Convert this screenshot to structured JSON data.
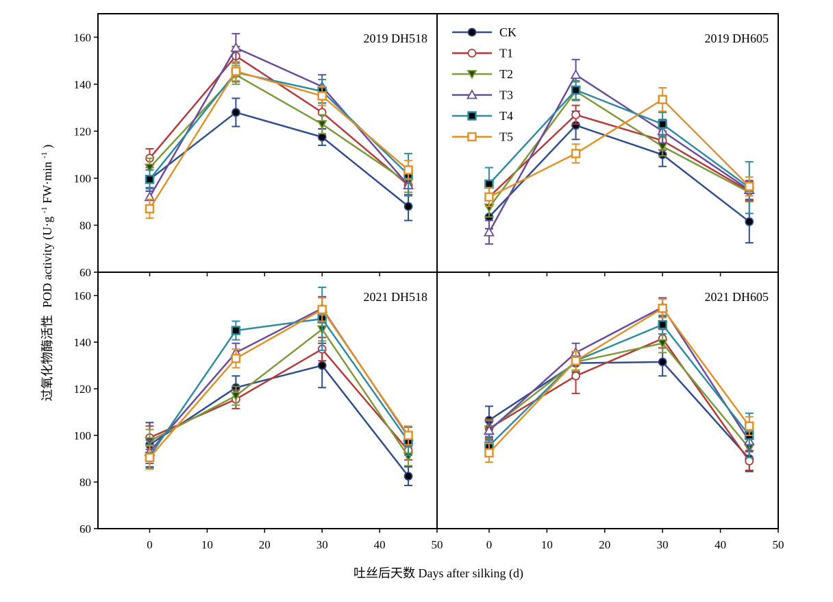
{
  "figure": {
    "ylabel_cn": "过氧化物酶活性",
    "ylabel_en": "POD activity (U·g",
    "ylabel_sup1": "-1",
    "ylabel_mid": " FW·min",
    "ylabel_sup2": "-1",
    "ylabel_end": ")",
    "xlabel": "吐丝后天数 Days after silking (d)"
  },
  "legend": [
    {
      "name": "CK",
      "color": "#2e4d8f",
      "marker": "circle",
      "fill": "#000000"
    },
    {
      "name": "T1",
      "color": "#b23a3a",
      "marker": "circle",
      "fill": "#ffffff"
    },
    {
      "name": "T2",
      "color": "#7c9a3a",
      "marker": "triangle-down",
      "fill": "#2a4a10"
    },
    {
      "name": "T3",
      "color": "#6a4b9a",
      "marker": "triangle-up",
      "fill": "#ffffff"
    },
    {
      "name": "T4",
      "color": "#2e8aa0",
      "marker": "square",
      "fill": "#000000"
    },
    {
      "name": "T5",
      "color": "#e0912a",
      "marker": "square",
      "fill": "#ffffff"
    }
  ],
  "chart_data": [
    {
      "type": "line",
      "title": "2019 DH518",
      "x": [
        0,
        15,
        30,
        45
      ],
      "xlim": [
        -9,
        50
      ],
      "ylim": [
        60,
        170
      ],
      "xticks": [
        0,
        10,
        20,
        30,
        40,
        50
      ],
      "yticks": [
        60,
        80,
        100,
        120,
        140,
        160
      ],
      "series": [
        {
          "name": "CK",
          "values": [
            99.5,
            128,
            117.5,
            88
          ],
          "err": [
            5,
            6,
            3.5,
            6
          ]
        },
        {
          "name": "T1",
          "values": [
            108.5,
            152,
            128,
            97
          ],
          "err": [
            4,
            4,
            4,
            4
          ]
        },
        {
          "name": "T2",
          "values": [
            104.5,
            144,
            123,
            98
          ],
          "err": [
            4,
            4,
            4,
            4
          ]
        },
        {
          "name": "T3",
          "values": [
            92,
            155.5,
            139,
            97
          ],
          "err": [
            4,
            6,
            5,
            4
          ]
        },
        {
          "name": "T4",
          "values": [
            99.5,
            145,
            137,
            101.5
          ],
          "err": [
            4,
            4,
            5,
            9
          ]
        },
        {
          "name": "T5",
          "values": [
            87,
            145.5,
            135,
            103.5
          ],
          "err": [
            4,
            4,
            4,
            4
          ]
        }
      ]
    },
    {
      "type": "line",
      "title": "2019 DH605",
      "x": [
        0,
        15,
        30,
        45
      ],
      "xlim": [
        -9,
        50
      ],
      "ylim": [
        60,
        170
      ],
      "xticks": [
        0,
        10,
        20,
        30,
        40,
        50
      ],
      "yticks": [
        60,
        80,
        100,
        120,
        140,
        160
      ],
      "series": [
        {
          "name": "CK",
          "values": [
            83.5,
            122.5,
            110,
            81.5
          ],
          "err": [
            5,
            6,
            5,
            9
          ]
        },
        {
          "name": "T1",
          "values": [
            92,
            127,
            116,
            94.5
          ],
          "err": [
            4,
            4,
            4,
            4
          ]
        },
        {
          "name": "T2",
          "values": [
            87.5,
            137,
            113.5,
            94
          ],
          "err": [
            4,
            4,
            4,
            4
          ]
        },
        {
          "name": "T3",
          "values": [
            77,
            144,
            120,
            95
          ],
          "err": [
            5,
            6.5,
            5,
            4
          ]
        },
        {
          "name": "T4",
          "values": [
            97.5,
            137.5,
            123,
            96
          ],
          "err": [
            7,
            4,
            5,
            11
          ]
        },
        {
          "name": "T5",
          "values": [
            92,
            110.5,
            133.5,
            96.5
          ],
          "err": [
            4,
            4,
            5,
            4
          ]
        }
      ]
    },
    {
      "type": "line",
      "title": "2021 DH518",
      "x": [
        0,
        15,
        30,
        45
      ],
      "xlim": [
        -9,
        50
      ],
      "ylim": [
        60,
        170
      ],
      "xticks": [
        0,
        10,
        20,
        30,
        40,
        50
      ],
      "yticks": [
        60,
        80,
        100,
        120,
        140,
        160
      ],
      "series": [
        {
          "name": "CK",
          "values": [
            96,
            120.5,
            130,
            82.5
          ],
          "err": [
            9.5,
            5,
            9.5,
            4
          ]
        },
        {
          "name": "T1",
          "values": [
            99,
            115.5,
            137,
            93.5
          ],
          "err": [
            5,
            4,
            5,
            4
          ]
        },
        {
          "name": "T2",
          "values": [
            97.5,
            117,
            145.5,
            91
          ],
          "err": [
            5,
            4,
            5,
            4
          ]
        },
        {
          "name": "T3",
          "values": [
            93,
            135.5,
            154.5,
            99.5
          ],
          "err": [
            5,
            4,
            5,
            4
          ]
        },
        {
          "name": "T4",
          "values": [
            91,
            145,
            150,
            97.5
          ],
          "err": [
            5,
            4,
            13.5,
            6
          ]
        },
        {
          "name": "T5",
          "values": [
            90.5,
            133,
            154,
            100
          ],
          "err": [
            5,
            4,
            5,
            4
          ]
        }
      ]
    },
    {
      "type": "line",
      "title": "2021 DH605",
      "x": [
        0,
        15,
        30,
        45
      ],
      "xlim": [
        -9,
        50
      ],
      "ylim": [
        60,
        170
      ],
      "xticks": [
        0,
        10,
        20,
        30,
        40,
        50
      ],
      "yticks": [
        60,
        80,
        100,
        120,
        140,
        160
      ],
      "series": [
        {
          "name": "CK",
          "values": [
            106.5,
            131,
            131.5,
            90
          ],
          "err": [
            6,
            4,
            6,
            5.5
          ]
        },
        {
          "name": "T1",
          "values": [
            103,
            125.5,
            141.5,
            89
          ],
          "err": [
            4,
            7.5,
            4,
            4
          ]
        },
        {
          "name": "T2",
          "values": [
            102.5,
            131.5,
            139.5,
            94.5
          ],
          "err": [
            4,
            4,
            4,
            4
          ]
        },
        {
          "name": "T3",
          "values": [
            102,
            135.5,
            155,
            97.5
          ],
          "err": [
            4,
            4,
            4,
            4
          ]
        },
        {
          "name": "T4",
          "values": [
            95.5,
            132,
            147.5,
            100
          ],
          "err": [
            4,
            4,
            4,
            9.5
          ]
        },
        {
          "name": "T5",
          "values": [
            92.5,
            132,
            154.5,
            104
          ],
          "err": [
            4,
            4,
            4,
            4
          ]
        }
      ]
    }
  ]
}
